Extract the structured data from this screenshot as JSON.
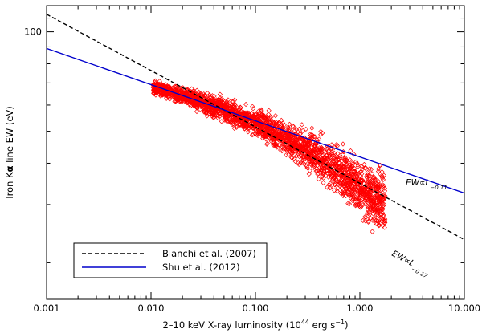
{
  "chart_data": {
    "type": "scatter",
    "title": "",
    "xlabel_main": "2–10 keV X-ray luminosity (10",
    "xlabel_exp": "44",
    "xlabel_unit": " erg s",
    "xlabel_unit_exp": "−1",
    "xlabel_close": ")",
    "ylabel_pre": "Iron K",
    "ylabel_greek": "α",
    "ylabel_post": " line EW (eV)",
    "x_scale": "log",
    "y_scale": "log",
    "xlim": [
      0.001,
      10.0
    ],
    "ylim": [
      15.5,
      120
    ],
    "x_ticks": [
      {
        "value": 0.001,
        "label": "0.001"
      },
      {
        "value": 0.01,
        "label": "0.010"
      },
      {
        "value": 0.1,
        "label": "0.100"
      },
      {
        "value": 1.0,
        "label": "1.000"
      },
      {
        "value": 10.0,
        "label": "10.000"
      }
    ],
    "y_ticks": [
      {
        "value": 100,
        "label": "100"
      }
    ],
    "series": [
      {
        "name": "Bianchi et al. (2007)",
        "kind": "line",
        "style": "dashed",
        "color": "#000000",
        "x": [
          0.001,
          10.0
        ],
        "y": [
          113,
          23.5
        ]
      },
      {
        "name": "Shu et al. (2012)",
        "kind": "line",
        "style": "solid",
        "color": "#0000cc",
        "x": [
          0.001,
          10.0
        ],
        "y": [
          89,
          32.5
        ]
      },
      {
        "name": "simulated sources",
        "kind": "scatter",
        "marker": "diamond",
        "color": "#ff0000",
        "x_range": [
          0.0105,
          1.75
        ],
        "trend_x": [
          0.0105,
          0.02,
          0.05,
          0.1,
          0.2,
          0.5,
          1.0,
          1.5,
          1.75
        ],
        "trend_y": [
          68,
          64,
          58,
          53,
          47.5,
          40,
          34,
          31,
          30
        ],
        "scatter_dex": [
          0.012,
          0.015,
          0.02,
          0.025,
          0.03,
          0.04,
          0.05,
          0.06,
          0.07
        ]
      }
    ],
    "annotations": [
      {
        "text": "EW∝L",
        "exp": "−0.11",
        "color": "#0000cc",
        "x": 2.7,
        "y": 37
      },
      {
        "text": "EW∝L",
        "exp": "−0.17",
        "color": "#000000",
        "x": 1.7,
        "y": 24.2
      }
    ],
    "legend_position": "bottom-left"
  }
}
